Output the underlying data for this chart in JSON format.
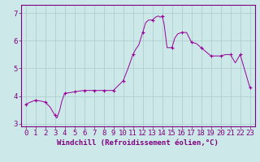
{
  "x": [
    0,
    0.5,
    1,
    1.5,
    2,
    2.5,
    3,
    3.2,
    3.5,
    3.7,
    4,
    4.5,
    5,
    5.5,
    6,
    6.5,
    7,
    7.5,
    8,
    8.5,
    9,
    9.5,
    10,
    10.5,
    11,
    11.3,
    11.6,
    12,
    12.3,
    12.6,
    13,
    13.3,
    13.6,
    13.8,
    14,
    14.2,
    14.5,
    15,
    15.3,
    15.6,
    16,
    16.5,
    17,
    17.5,
    18,
    18.5,
    19,
    19.5,
    20,
    20.5,
    21,
    21.5,
    22,
    22.5,
    23
  ],
  "y": [
    3.7,
    3.78,
    3.85,
    3.82,
    3.78,
    3.6,
    3.3,
    3.2,
    3.5,
    3.8,
    4.1,
    4.12,
    4.15,
    4.18,
    4.2,
    4.2,
    4.2,
    4.2,
    4.2,
    4.2,
    4.2,
    4.38,
    4.55,
    5.0,
    5.5,
    5.7,
    5.85,
    6.3,
    6.65,
    6.75,
    6.75,
    6.85,
    6.9,
    6.85,
    6.9,
    6.6,
    5.75,
    5.75,
    6.1,
    6.25,
    6.3,
    6.3,
    5.95,
    5.9,
    5.75,
    5.6,
    5.45,
    5.45,
    5.45,
    5.5,
    5.5,
    5.2,
    5.5,
    4.9,
    4.3
  ],
  "marker_x": [
    0,
    1,
    2,
    3,
    4,
    5,
    6,
    7,
    8,
    9,
    10,
    11,
    12,
    13,
    14,
    15,
    16,
    17,
    18,
    19,
    20,
    21,
    22,
    23
  ],
  "marker_y": [
    3.7,
    3.85,
    3.78,
    3.3,
    4.1,
    4.15,
    4.2,
    4.2,
    4.2,
    4.2,
    4.55,
    5.5,
    6.3,
    6.75,
    6.9,
    5.75,
    6.3,
    5.95,
    5.75,
    5.45,
    5.45,
    5.5,
    5.5,
    4.3
  ],
  "line_color": "#990099",
  "marker": "+",
  "marker_size": 3,
  "bg_color": "#cce8e8",
  "grid_color": "#aacccc",
  "xlabel": "Windchill (Refroidissement éolien,°C)",
  "xlim": [
    -0.5,
    23.5
  ],
  "ylim": [
    2.9,
    7.3
  ],
  "yticks": [
    3,
    4,
    5,
    6,
    7
  ],
  "xticks": [
    0,
    1,
    2,
    3,
    4,
    5,
    6,
    7,
    8,
    9,
    10,
    11,
    12,
    13,
    14,
    15,
    16,
    17,
    18,
    19,
    20,
    21,
    22,
    23
  ],
  "xlabel_fontsize": 6.5,
  "tick_fontsize": 6.5,
  "tick_color": "#800080",
  "axis_color": "#800080"
}
